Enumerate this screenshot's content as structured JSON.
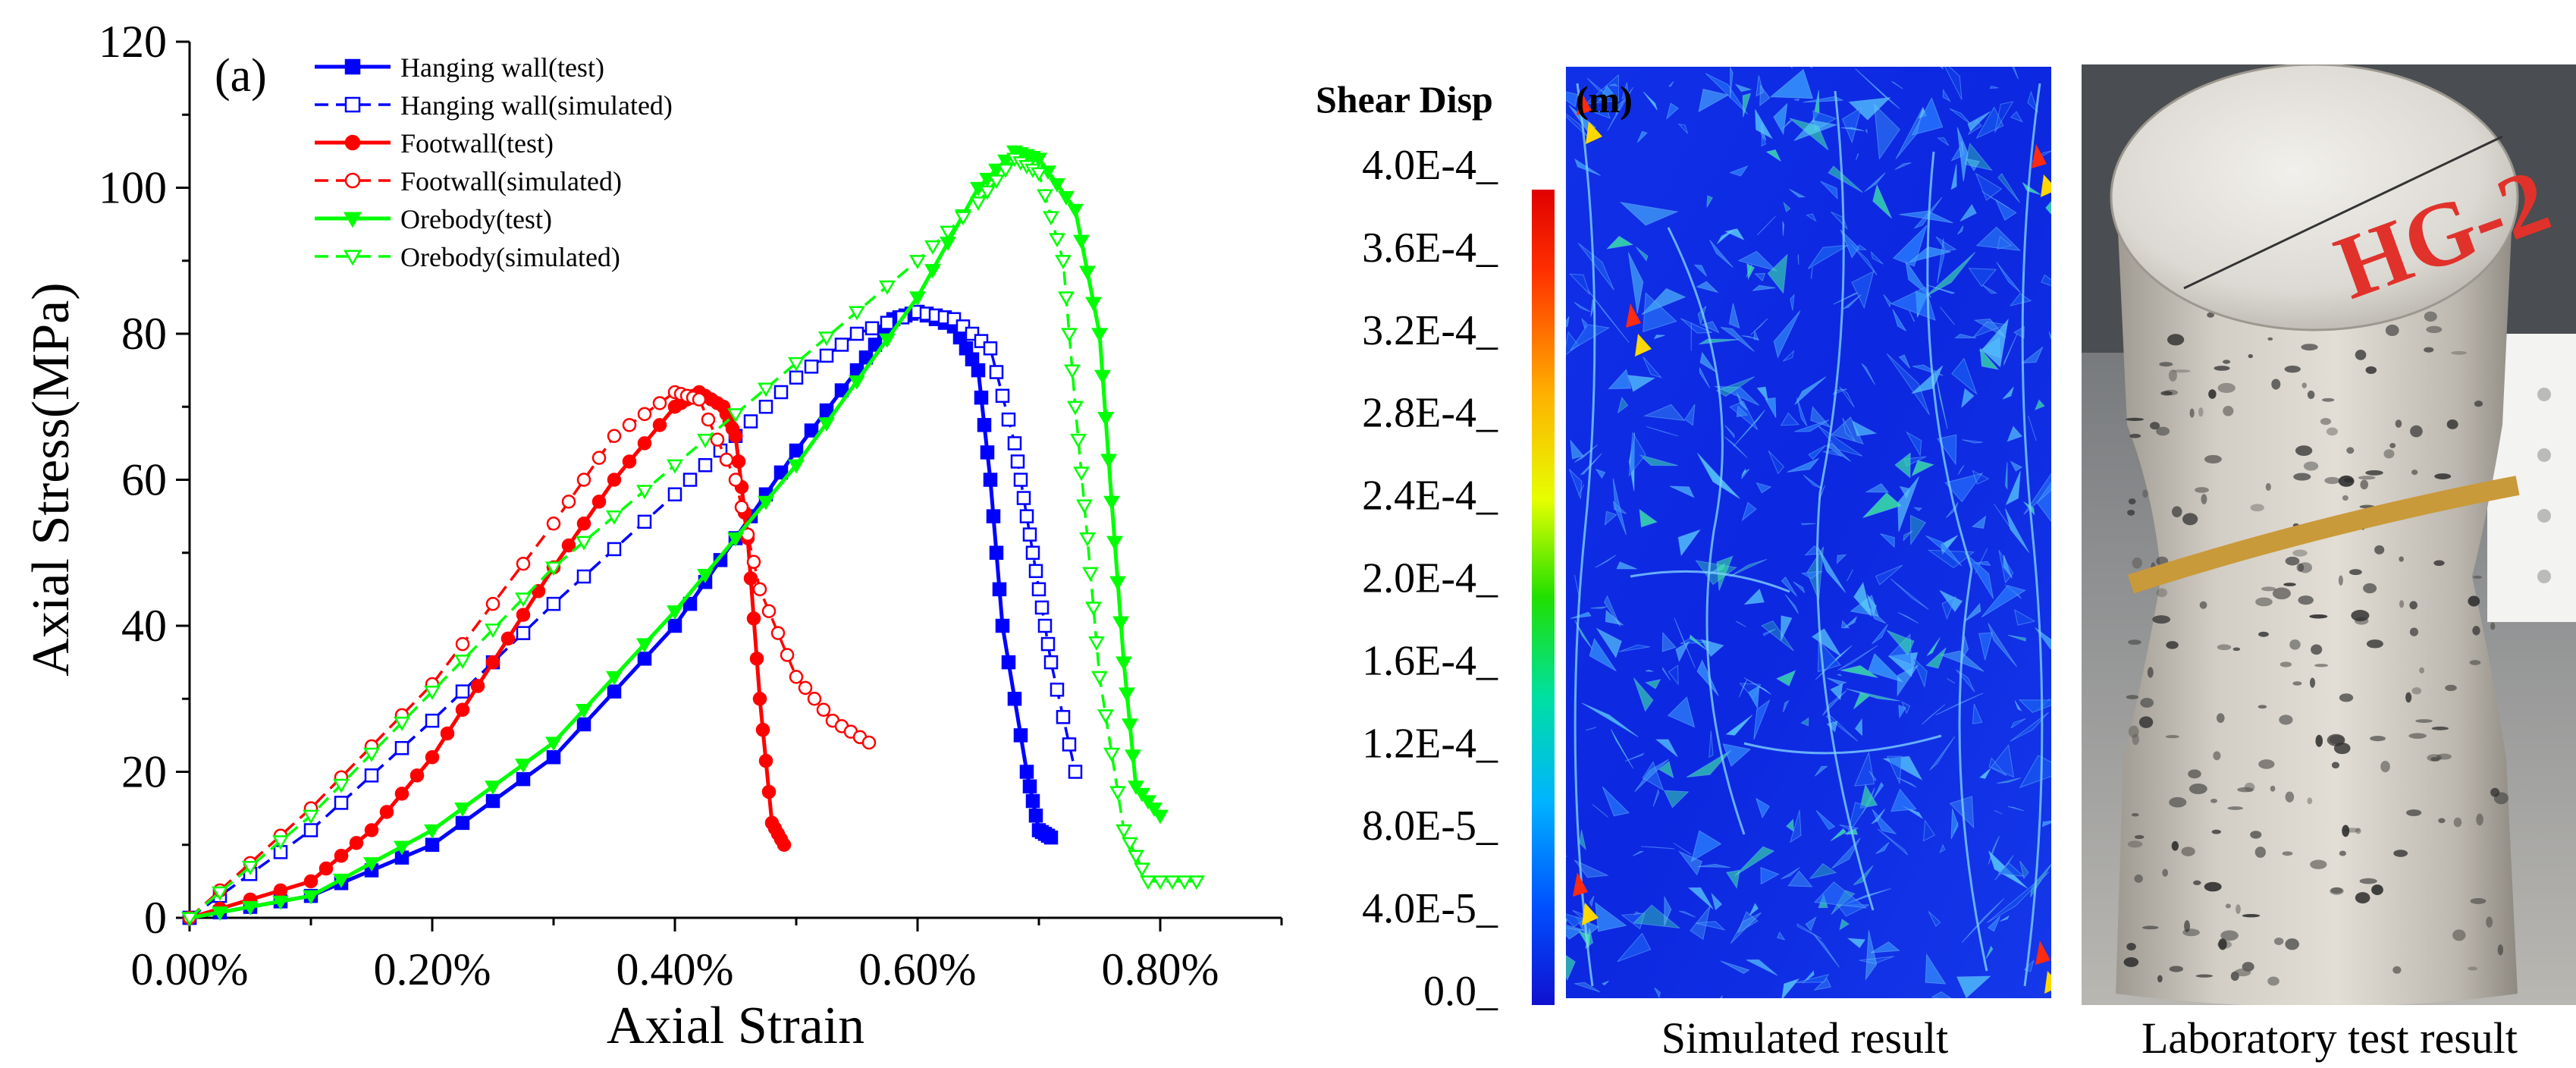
{
  "chart_data": {
    "type": "line",
    "panel_label": "(a)",
    "xlabel": "Axial Strain",
    "ylabel": "Axial Stress(MPa)",
    "xlim": [
      0.0,
      0.009
    ],
    "ylim": [
      0,
      120
    ],
    "x_ticks": [
      0.0,
      0.002,
      0.004,
      0.006,
      0.008
    ],
    "x_tick_labels": [
      "0.00%",
      "0.20%",
      "0.40%",
      "0.60%",
      "0.80%"
    ],
    "y_ticks": [
      0,
      20,
      40,
      60,
      80,
      100,
      120
    ],
    "y_tick_labels": [
      "0",
      "20",
      "40",
      "60",
      "80",
      "100",
      "120"
    ],
    "legend_position": "top-left",
    "series": [
      {
        "name": "Hanging wall(test)",
        "color": "#0000ff",
        "dash": "solid",
        "marker": "square",
        "filled": true,
        "points": [
          [
            0,
            0
          ],
          [
            0.001,
            3
          ],
          [
            0.002,
            10
          ],
          [
            0.003,
            22
          ],
          [
            0.004,
            40
          ],
          [
            0.0045,
            52
          ],
          [
            0.005,
            64
          ],
          [
            0.0055,
            75
          ],
          [
            0.0058,
            82
          ],
          [
            0.006,
            83
          ],
          [
            0.0063,
            81
          ],
          [
            0.0065,
            75
          ],
          [
            0.0066,
            60
          ],
          [
            0.0067,
            40
          ],
          [
            0.0069,
            20
          ],
          [
            0.007,
            12
          ],
          [
            0.0071,
            11
          ]
        ]
      },
      {
        "name": "Hanging wall(simulated)",
        "color": "#0000ff",
        "dash": "dashed",
        "marker": "square",
        "filled": false,
        "points": [
          [
            0,
            0
          ],
          [
            0.001,
            12
          ],
          [
            0.002,
            27
          ],
          [
            0.003,
            43
          ],
          [
            0.004,
            58
          ],
          [
            0.0045,
            66
          ],
          [
            0.005,
            74
          ],
          [
            0.0055,
            80
          ],
          [
            0.006,
            83
          ],
          [
            0.0063,
            82
          ],
          [
            0.0066,
            78
          ],
          [
            0.0068,
            65
          ],
          [
            0.0069,
            55
          ],
          [
            0.007,
            45
          ],
          [
            0.0071,
            35
          ],
          [
            0.0073,
            20
          ]
        ]
      },
      {
        "name": "Footwall(test)",
        "color": "#ff0000",
        "dash": "solid",
        "marker": "circle",
        "filled": true,
        "points": [
          [
            0,
            0
          ],
          [
            0.001,
            5
          ],
          [
            0.0015,
            12
          ],
          [
            0.002,
            22
          ],
          [
            0.0025,
            35
          ],
          [
            0.003,
            48
          ],
          [
            0.0035,
            60
          ],
          [
            0.004,
            70
          ],
          [
            0.0042,
            72
          ],
          [
            0.0044,
            70
          ],
          [
            0.0045,
            66
          ],
          [
            0.0046,
            52
          ],
          [
            0.0047,
            30
          ],
          [
            0.0048,
            13
          ],
          [
            0.0049,
            10
          ]
        ]
      },
      {
        "name": "Footwall(simulated)",
        "color": "#ff0000",
        "dash": "dashed",
        "marker": "circle",
        "filled": false,
        "points": [
          [
            0,
            0
          ],
          [
            0.001,
            15
          ],
          [
            0.002,
            32
          ],
          [
            0.003,
            54
          ],
          [
            0.0035,
            66
          ],
          [
            0.004,
            72
          ],
          [
            0.0042,
            71
          ],
          [
            0.0045,
            60
          ],
          [
            0.0047,
            45
          ],
          [
            0.005,
            33
          ],
          [
            0.0053,
            27
          ],
          [
            0.0056,
            24
          ]
        ]
      },
      {
        "name": "Orebody(test)",
        "color": "#00ff00",
        "dash": "solid",
        "marker": "triangle-down",
        "filled": true,
        "points": [
          [
            0,
            0
          ],
          [
            0.001,
            3
          ],
          [
            0.002,
            12
          ],
          [
            0.003,
            24
          ],
          [
            0.004,
            42
          ],
          [
            0.005,
            62
          ],
          [
            0.006,
            85
          ],
          [
            0.0065,
            100
          ],
          [
            0.0068,
            105
          ],
          [
            0.007,
            104
          ],
          [
            0.0073,
            97
          ],
          [
            0.0075,
            80
          ],
          [
            0.0076,
            57
          ],
          [
            0.0077,
            35
          ],
          [
            0.0078,
            18
          ],
          [
            0.008,
            14
          ]
        ]
      },
      {
        "name": "Orebody(simulated)",
        "color": "#00ff00",
        "dash": "dashed",
        "marker": "triangle-down",
        "filled": false,
        "points": [
          [
            0,
            0
          ],
          [
            0.001,
            14
          ],
          [
            0.002,
            31
          ],
          [
            0.003,
            48
          ],
          [
            0.004,
            62
          ],
          [
            0.005,
            76
          ],
          [
            0.006,
            90
          ],
          [
            0.0065,
            98
          ],
          [
            0.0068,
            104
          ],
          [
            0.007,
            102
          ],
          [
            0.0072,
            90
          ],
          [
            0.0073,
            70
          ],
          [
            0.0074,
            52
          ],
          [
            0.0075,
            33
          ],
          [
            0.0077,
            12
          ],
          [
            0.0079,
            5
          ],
          [
            0.0083,
            5
          ]
        ]
      }
    ]
  },
  "colorbar": {
    "title": "Shear Disp",
    "title_suffix": "(m)",
    "tick_labels": [
      "4.0E-4_",
      "3.6E-4_",
      "3.2E-4_",
      "2.8E-4_",
      "2.4E-4_",
      "2.0E-4_",
      "1.6E-4_",
      "1.2E-4_",
      "8.0E-5_",
      "4.0E-5_",
      "0.0_"
    ]
  },
  "captions": {
    "simulated": "Simulated result",
    "laboratory": "Laboratory test result"
  },
  "photo": {
    "label": "HG-2",
    "label_color": "#e0322b"
  }
}
